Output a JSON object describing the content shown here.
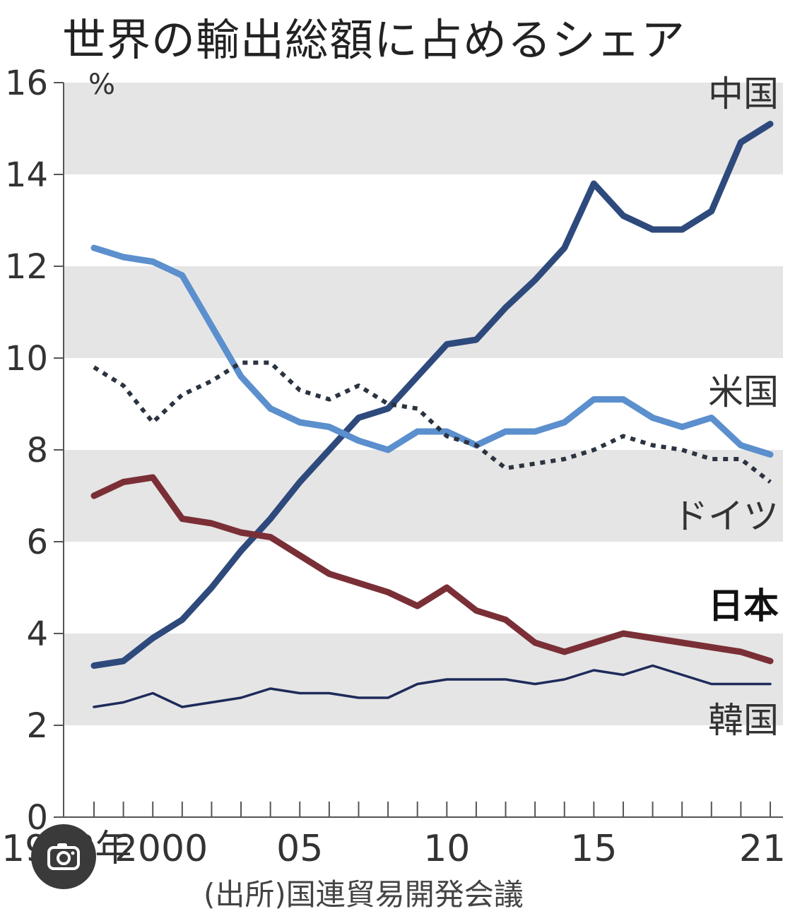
{
  "title": "世界の輸出総額に占めるシェア",
  "source": "(出所)国連貿易開発会議",
  "badge_icon": "google-lens-icon",
  "chart_data": {
    "type": "line",
    "ylabel": "%",
    "ylim": [
      0,
      16
    ],
    "xlim": [
      1998,
      2021
    ],
    "yticks": [
      "0",
      "2",
      "4",
      "6",
      "8",
      "10",
      "12",
      "14",
      "16"
    ],
    "xticks": [
      {
        "x": 1998,
        "label": "1998年"
      },
      {
        "x": 2000,
        "label": "2000"
      },
      {
        "x": 2005,
        "label": "05"
      },
      {
        "x": 2010,
        "label": "10"
      },
      {
        "x": 2015,
        "label": "15"
      },
      {
        "x": 2021,
        "label": "21"
      }
    ],
    "bands": [
      [
        2,
        4
      ],
      [
        6,
        8
      ],
      [
        10,
        12
      ],
      [
        14,
        16
      ]
    ],
    "band_color": "#e5e5e5",
    "x": [
      1998,
      1999,
      2000,
      2001,
      2002,
      2003,
      2004,
      2005,
      2006,
      2007,
      2008,
      2009,
      2010,
      2011,
      2012,
      2013,
      2014,
      2015,
      2016,
      2017,
      2018,
      2019,
      2020,
      2021
    ],
    "series": [
      {
        "name": "中国",
        "color": "#2e4a7c",
        "width": 9,
        "dash": "",
        "values": [
          3.3,
          3.4,
          3.9,
          4.3,
          5.0,
          5.8,
          6.5,
          7.3,
          8.0,
          8.7,
          8.9,
          9.6,
          10.3,
          10.4,
          11.1,
          11.7,
          12.4,
          13.8,
          13.1,
          12.8,
          12.8,
          13.2,
          14.7,
          15.1
        ]
      },
      {
        "name": "米国",
        "color": "#5b8fcd",
        "width": 9,
        "dash": "",
        "values": [
          12.4,
          12.2,
          12.1,
          11.8,
          10.7,
          9.6,
          8.9,
          8.6,
          8.5,
          8.2,
          8.0,
          8.4,
          8.4,
          8.1,
          8.4,
          8.4,
          8.6,
          9.1,
          9.1,
          8.7,
          8.5,
          8.7,
          8.1,
          7.9
        ]
      },
      {
        "name": "ドイツ",
        "color": "#2b3340",
        "width": 6,
        "dash": "7 8",
        "values": [
          9.8,
          9.4,
          8.6,
          9.2,
          9.5,
          9.9,
          9.9,
          9.3,
          9.1,
          9.4,
          9.0,
          8.9,
          8.3,
          8.1,
          7.6,
          7.7,
          7.8,
          8.0,
          8.3,
          8.1,
          8.0,
          7.8,
          7.8,
          7.3
        ]
      },
      {
        "name": "日本",
        "color": "#7a2f36",
        "width": 9,
        "dash": "",
        "bold": true,
        "values": [
          7.0,
          7.3,
          7.4,
          6.5,
          6.4,
          6.2,
          6.1,
          5.7,
          5.3,
          5.1,
          4.9,
          4.6,
          5.0,
          4.5,
          4.3,
          3.8,
          3.6,
          3.8,
          4.0,
          3.9,
          3.8,
          3.7,
          3.6,
          3.4
        ]
      },
      {
        "name": "韓国",
        "color": "#1e2a5a",
        "width": 3.5,
        "dash": "",
        "values": [
          2.4,
          2.5,
          2.7,
          2.4,
          2.5,
          2.6,
          2.8,
          2.7,
          2.7,
          2.6,
          2.6,
          2.9,
          3.0,
          3.0,
          3.0,
          2.9,
          3.0,
          3.2,
          3.1,
          3.3,
          3.1,
          2.9,
          2.9,
          2.9
        ]
      }
    ]
  }
}
